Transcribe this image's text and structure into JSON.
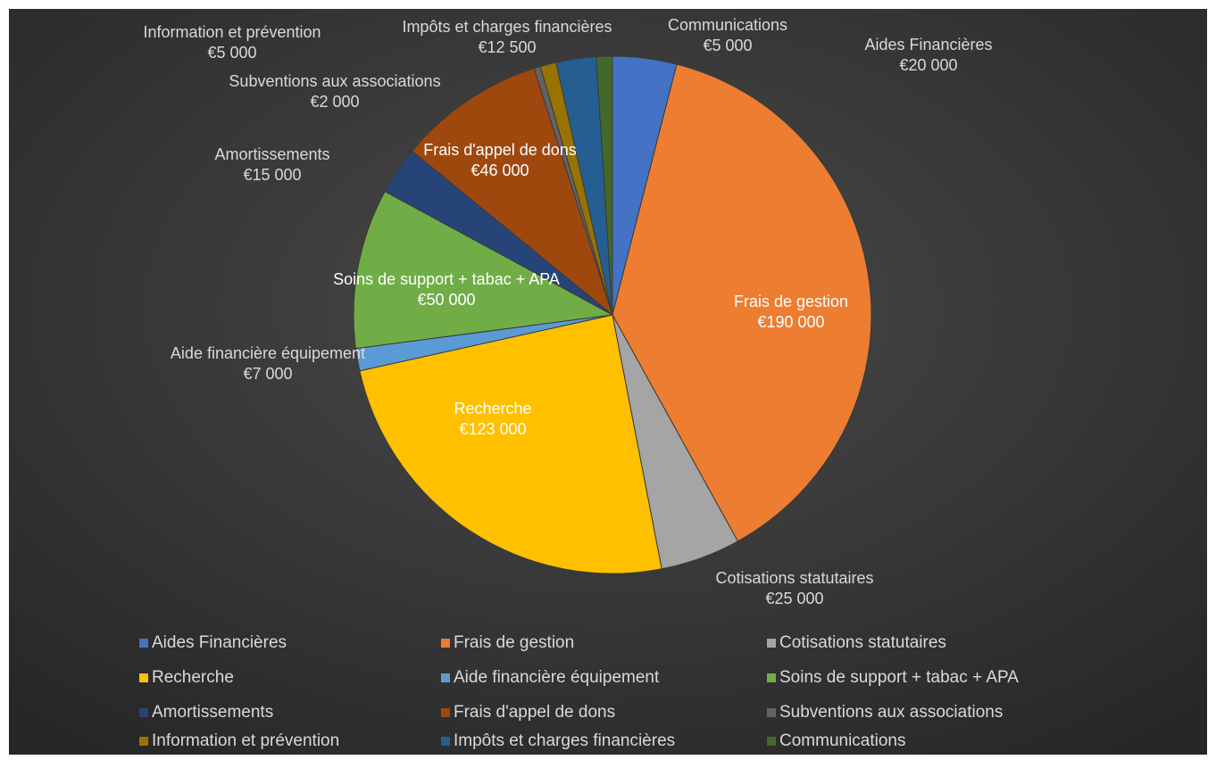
{
  "chart_data": {
    "type": "pie",
    "categories": [
      "Aides Financières",
      "Frais de gestion",
      "Cotisations statutaires",
      "Recherche",
      "Aide financière équipement",
      "Soins de support + tabac + APA",
      "Amortissements",
      "Frais d'appel de dons",
      "Subventions aux associations",
      "Information et prévention",
      "Impôts et charges financières",
      "Communications"
    ],
    "values": [
      20000,
      190000,
      25000,
      123000,
      7000,
      50000,
      15000,
      46000,
      2000,
      5000,
      12500,
      5000
    ],
    "value_labels": [
      "€20 000",
      "€190 000",
      "€25 000",
      "€123 000",
      "€7 000",
      "€50 000",
      "€15 000",
      "€46 000",
      "€2 000",
      "€5 000",
      "€12 500",
      "€5 000"
    ],
    "colors": [
      "#4472c4",
      "#ed7d31",
      "#a5a5a5",
      "#ffc000",
      "#5b9bd5",
      "#70ad47",
      "#264478",
      "#9e480e",
      "#636363",
      "#997300",
      "#255e91",
      "#43682b"
    ],
    "legend": "bottom"
  }
}
